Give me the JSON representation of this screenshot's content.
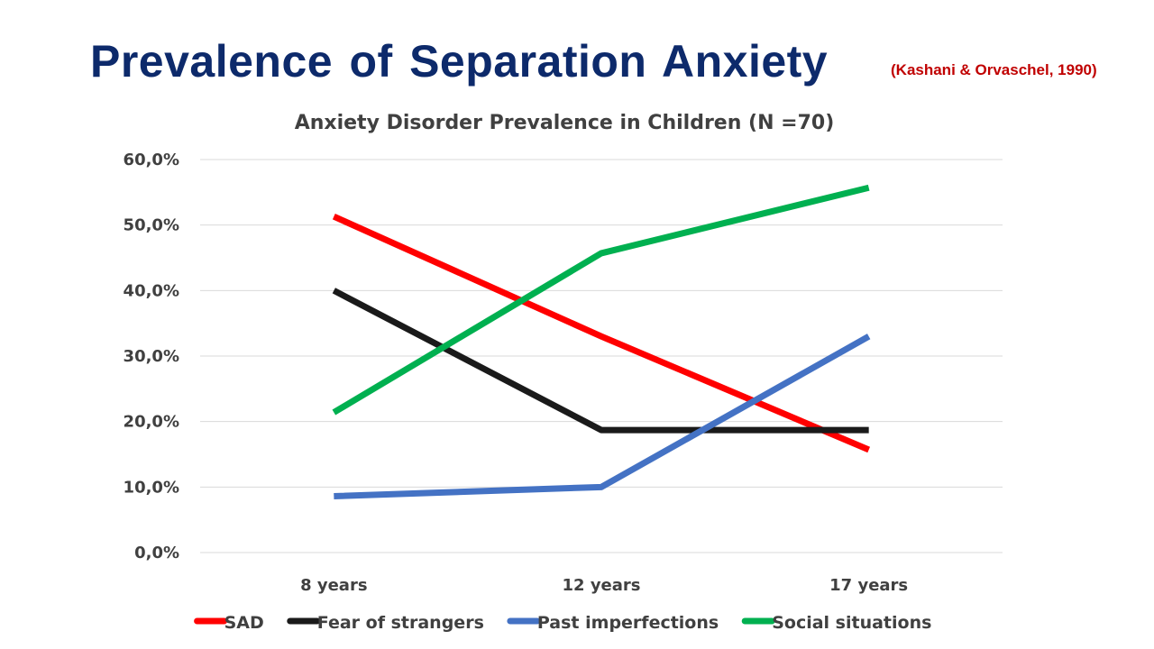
{
  "slide": {
    "title": "Prevalence of Separation Anxiety",
    "citation": "(Kashani & Orvaschel, 1990)"
  },
  "colors": {
    "title": "#0d2a6b",
    "citation": "#c00000",
    "gridline": "#d9d9d9",
    "text": "#404040"
  },
  "chart_data": {
    "type": "line",
    "title": "Anxiety Disorder Prevalence in Children (N =70)",
    "xlabel": "",
    "ylabel": "",
    "categories": [
      "8 years",
      "12 years",
      "17 years"
    ],
    "ylim": [
      0,
      60
    ],
    "yticks": [
      "0,0%",
      "10,0%",
      "20,0%",
      "30,0%",
      "40,0%",
      "50,0%",
      "60,0%"
    ],
    "ytick_values": [
      0,
      10,
      20,
      30,
      40,
      50,
      60
    ],
    "grid": true,
    "legend_position": "bottom",
    "series": [
      {
        "name": "SAD",
        "color": "#ff0000",
        "values": [
          51.3,
          33.0,
          15.7
        ]
      },
      {
        "name": "Fear of strangers",
        "color": "#1a1a1a",
        "values": [
          40.0,
          18.7,
          18.7
        ]
      },
      {
        "name": "Past imperfections",
        "color": "#4472c4",
        "values": [
          8.6,
          10.0,
          33.0
        ]
      },
      {
        "name": "Social situations",
        "color": "#00b050",
        "values": [
          21.4,
          45.7,
          55.7
        ]
      }
    ]
  }
}
